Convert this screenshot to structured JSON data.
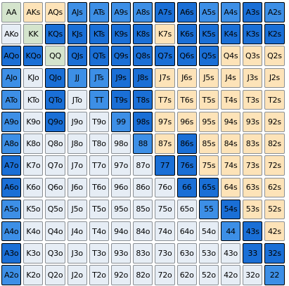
{
  "ranks": [
    "A",
    "K",
    "Q",
    "J",
    "T",
    "9",
    "8",
    "7",
    "6",
    "5",
    "4",
    "3",
    "2"
  ],
  "colors": {
    "pair": "#d4e4cc",
    "suited": "#fde3b8",
    "offsuit": "#e6edf5",
    "selected_light": "#6cb0f5",
    "selected_mid": "#3d8fe6",
    "selected_dark": "#1a6fd6"
  },
  "selection": [
    [
      "",
      "",
      "",
      "M",
      "M",
      "M",
      "M",
      "D",
      "D",
      "M",
      "M",
      "D",
      "M"
    ],
    [
      "",
      "",
      "D",
      "D",
      "D",
      "D",
      "D",
      "",
      "D",
      "D",
      "D",
      "D",
      "D"
    ],
    [
      "D",
      "D",
      "",
      "D",
      "D",
      "D",
      "D",
      "D",
      "D",
      "D",
      "",
      "",
      ""
    ],
    [
      "M",
      "",
      "D",
      "M",
      "M",
      "D",
      "D",
      "",
      "",
      "",
      "",
      "",
      ""
    ],
    [
      "M",
      "",
      "D",
      "",
      "M",
      "D",
      "D",
      "",
      "",
      "",
      "",
      "",
      ""
    ],
    [
      "M",
      "",
      "D",
      "",
      "",
      "M",
      "D",
      "",
      "",
      "",
      "",
      "",
      ""
    ],
    [
      "M",
      "",
      "",
      "",
      "",
      "",
      "M",
      "",
      "D",
      "",
      "",
      "",
      ""
    ],
    [
      "D",
      "",
      "",
      "",
      "",
      "",
      "",
      "D",
      "D",
      "",
      "",
      "",
      ""
    ],
    [
      "D",
      "",
      "",
      "",
      "",
      "",
      "",
      "",
      "D",
      "D",
      "",
      "",
      ""
    ],
    [
      "M",
      "",
      "",
      "",
      "",
      "",
      "",
      "",
      "",
      "M",
      "D",
      "",
      ""
    ],
    [
      "M",
      "",
      "",
      "",
      "",
      "",
      "",
      "",
      "",
      "",
      "M",
      "D",
      ""
    ],
    [
      "D",
      "",
      "",
      "",
      "",
      "",
      "",
      "",
      "",
      "",
      "",
      "D",
      "D"
    ],
    [
      "M",
      "",
      "",
      "",
      "",
      "",
      "",
      "",
      "",
      "",
      "",
      "",
      "M"
    ]
  ]
}
